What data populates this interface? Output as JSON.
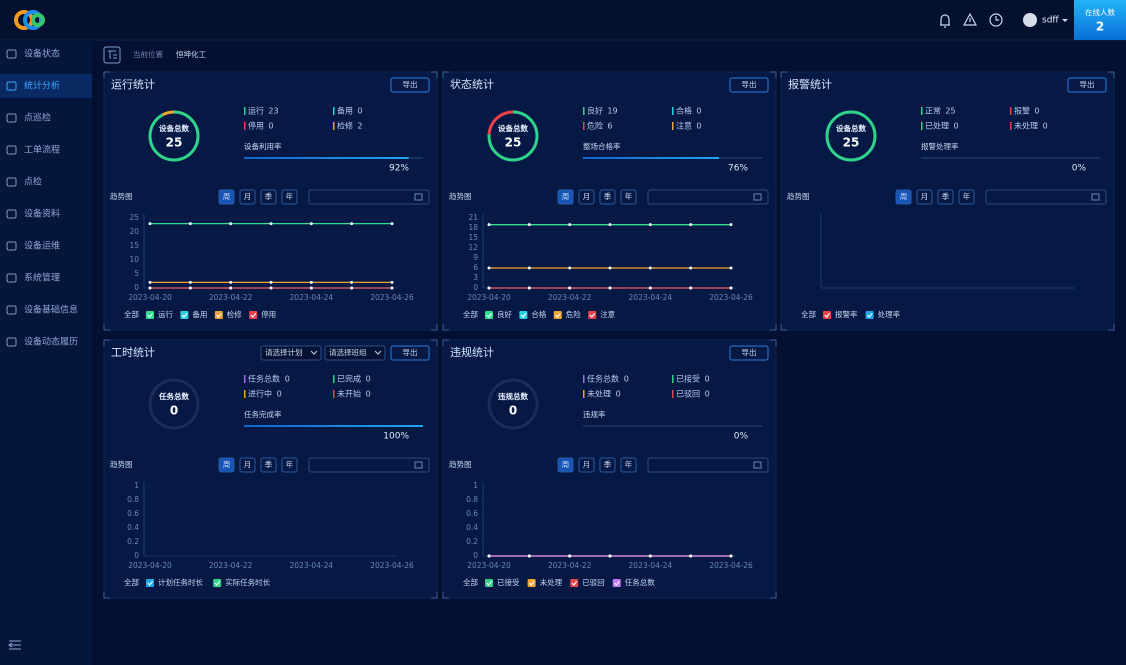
{
  "header": {
    "user": "sdff",
    "online_label": "在线人数",
    "online_count": 2
  },
  "menu": {
    "items": [
      "设备状态",
      "统计分析",
      "点巡检",
      "工单流程",
      "点检",
      "设备资料",
      "设备运维",
      "系统管理",
      "设备基础信息",
      "设备动态履历"
    ],
    "active": 1
  },
  "breadcrumb": {
    "label": "当前位置",
    "current": "恒坤化工"
  },
  "panels": [
    {
      "title": "运行统计",
      "export": "导出",
      "total_label": "设备总数",
      "total": 25,
      "stats": [
        {
          "name": "运行",
          "value": 23,
          "color": "#2fd38a"
        },
        {
          "name": "备用",
          "value": 0,
          "color": "#2ad1e6"
        },
        {
          "name": "停用",
          "value": 0,
          "color": "#e8424a"
        },
        {
          "name": "检修",
          "value": 2,
          "color": "#f0a531"
        }
      ],
      "rate_label": "设备利用率",
      "rate": {
        "value": 92,
        "label": "92%"
      },
      "trend_label": "趋势图",
      "periods": [
        "周",
        "月",
        "季",
        "年"
      ],
      "legend_all": "全部"
    },
    {
      "title": "状态统计",
      "export": "导出",
      "total_label": "设备总数",
      "total": 25,
      "stats": [
        {
          "name": "良好",
          "value": 19,
          "color": "#2fd38a"
        },
        {
          "name": "合格",
          "value": 0,
          "color": "#2ad1e6"
        },
        {
          "name": "危险",
          "value": 6,
          "color": "#e8424a"
        },
        {
          "name": "注意",
          "value": 0,
          "color": "#f0a531"
        }
      ],
      "rate_label": "整场合格率",
      "rate": {
        "value": 76,
        "label": "76%"
      },
      "trend_label": "趋势图",
      "periods": [
        "周",
        "月",
        "季",
        "年"
      ],
      "legend_all": "全部"
    },
    {
      "title": "报警统计",
      "export": "导出",
      "total_label": "设备总数",
      "total": 25,
      "stats": [
        {
          "name": "正常",
          "value": 25,
          "color": "#2fd38a"
        },
        {
          "name": "报警",
          "value": 0,
          "color": "#e8424a"
        },
        {
          "name": "已处理",
          "value": 0,
          "color": "#2fd38a"
        },
        {
          "name": "未处理",
          "value": 0,
          "color": "#e8424a"
        }
      ],
      "rate_label": "报警处理率",
      "rate": {
        "value": 0,
        "label": "0%"
      },
      "trend_label": "趋势图",
      "periods": [
        "周",
        "月",
        "季",
        "年"
      ],
      "legend_all": "全部"
    },
    {
      "title": "工时统计",
      "export": "导出",
      "selects": [
        "请选择计划",
        "请选择班组"
      ],
      "total_label": "任务总数",
      "total": 0,
      "stats": [
        {
          "name": "任务总数",
          "value": 0,
          "color": "#a26bf0"
        },
        {
          "name": "已完成",
          "value": 0,
          "color": "#2fd38a"
        },
        {
          "name": "进行中",
          "value": 0,
          "color": "#f0a531"
        },
        {
          "name": "未开始",
          "value": 0,
          "color": "#e8424a"
        }
      ],
      "rate_label": "任务完成率",
      "rate": {
        "value": 100,
        "label": "100%"
      },
      "trend_label": "趋势图",
      "periods": [
        "周",
        "月",
        "季",
        "年"
      ],
      "legend_all": "全部"
    },
    {
      "title": "违规统计",
      "export": "导出",
      "total_label": "违规总数",
      "total": 0,
      "stats": [
        {
          "name": "任务总数",
          "value": 0,
          "color": "#a26bf0"
        },
        {
          "name": "已接受",
          "value": 0,
          "color": "#2fd38a"
        },
        {
          "name": "未处理",
          "value": 0,
          "color": "#f0a531"
        },
        {
          "name": "已驳回",
          "value": 0,
          "color": "#e8424a"
        }
      ],
      "rate_label": "违规率",
      "rate": {
        "value": 0,
        "label": "0%"
      },
      "trend_label": "趋势图",
      "periods": [
        "周",
        "月",
        "季",
        "年"
      ],
      "legend_all": "全部"
    }
  ],
  "chart_data": [
    {
      "type": "line",
      "categories": [
        "2023-04-20",
        null,
        "2023-04-22",
        null,
        "2023-04-24",
        null,
        "2023-04-26"
      ],
      "ylim": [
        0,
        25
      ],
      "yticks": [
        0,
        5,
        10,
        15,
        20,
        25
      ],
      "series": [
        {
          "name": "运行",
          "color": "#2fe08e",
          "values": [
            23,
            23,
            23,
            23,
            23,
            23,
            23
          ]
        },
        {
          "name": "备用",
          "color": "#2ad1e6",
          "values": [
            0,
            0,
            0,
            0,
            0,
            0,
            0
          ]
        },
        {
          "name": "检修",
          "color": "#f0a531",
          "values": [
            2,
            2,
            2,
            2,
            2,
            2,
            2
          ]
        },
        {
          "name": "停用",
          "color": "#e8424a",
          "values": [
            0,
            0,
            0,
            0,
            0,
            0,
            0
          ]
        }
      ]
    },
    {
      "type": "line",
      "categories": [
        "2023-04-20",
        null,
        "2023-04-22",
        null,
        "2023-04-24",
        null,
        "2023-04-26"
      ],
      "ylim": [
        0,
        21
      ],
      "yticks": [
        0,
        3,
        6,
        9,
        12,
        15,
        18,
        21
      ],
      "series": [
        {
          "name": "良好",
          "color": "#2fe08e",
          "values": [
            19,
            19,
            19,
            19,
            19,
            19,
            19
          ]
        },
        {
          "name": "合格",
          "color": "#2ad1e6",
          "values": [
            0,
            0,
            0,
            0,
            0,
            0,
            0
          ]
        },
        {
          "name": "危险",
          "color": "#f0a531",
          "values": [
            6,
            6,
            6,
            6,
            6,
            6,
            6
          ]
        },
        {
          "name": "注意",
          "color": "#e8424a",
          "values": [
            0,
            0,
            0,
            0,
            0,
            0,
            0
          ]
        }
      ]
    },
    {
      "type": "line",
      "categories": [],
      "series": [
        {
          "name": "报警率",
          "color": "#e8424a",
          "values": []
        },
        {
          "name": "处理率",
          "color": "#1aa9e8",
          "values": []
        }
      ]
    },
    {
      "type": "line",
      "categories": [
        "2023-04-20",
        null,
        "2023-04-22",
        null,
        "2023-04-24",
        null,
        "2023-04-26"
      ],
      "ylim": [
        0,
        1
      ],
      "yticks": [
        0,
        0.2,
        0.4,
        0.6,
        0.8,
        1
      ],
      "series": [
        {
          "name": "计划任务时长",
          "color": "#1aa9e8",
          "values": [
            null,
            null,
            null,
            null,
            null,
            null,
            null
          ]
        },
        {
          "name": "实际任务时长",
          "color": "#2fd38a",
          "values": [
            null,
            null,
            null,
            null,
            null,
            null,
            null
          ]
        }
      ]
    },
    {
      "type": "line",
      "categories": [
        "2023-04-20",
        null,
        "2023-04-22",
        null,
        "2023-04-24",
        null,
        "2023-04-26"
      ],
      "ylim": [
        0,
        1
      ],
      "yticks": [
        0,
        0.2,
        0.4,
        0.6,
        0.8,
        1
      ],
      "series": [
        {
          "name": "已接受",
          "color": "#2fd38a",
          "values": [
            0,
            0,
            0,
            0,
            0,
            0,
            0
          ]
        },
        {
          "name": "未处理",
          "color": "#f0a531",
          "values": [
            0,
            0,
            0,
            0,
            0,
            0,
            0
          ]
        },
        {
          "name": "已驳回",
          "color": "#e8424a",
          "values": [
            0,
            0,
            0,
            0,
            0,
            0,
            0
          ]
        },
        {
          "name": "任务总数",
          "color": "#c07bf5",
          "values": [
            0,
            0,
            0,
            0,
            0,
            0,
            0
          ]
        }
      ]
    }
  ]
}
